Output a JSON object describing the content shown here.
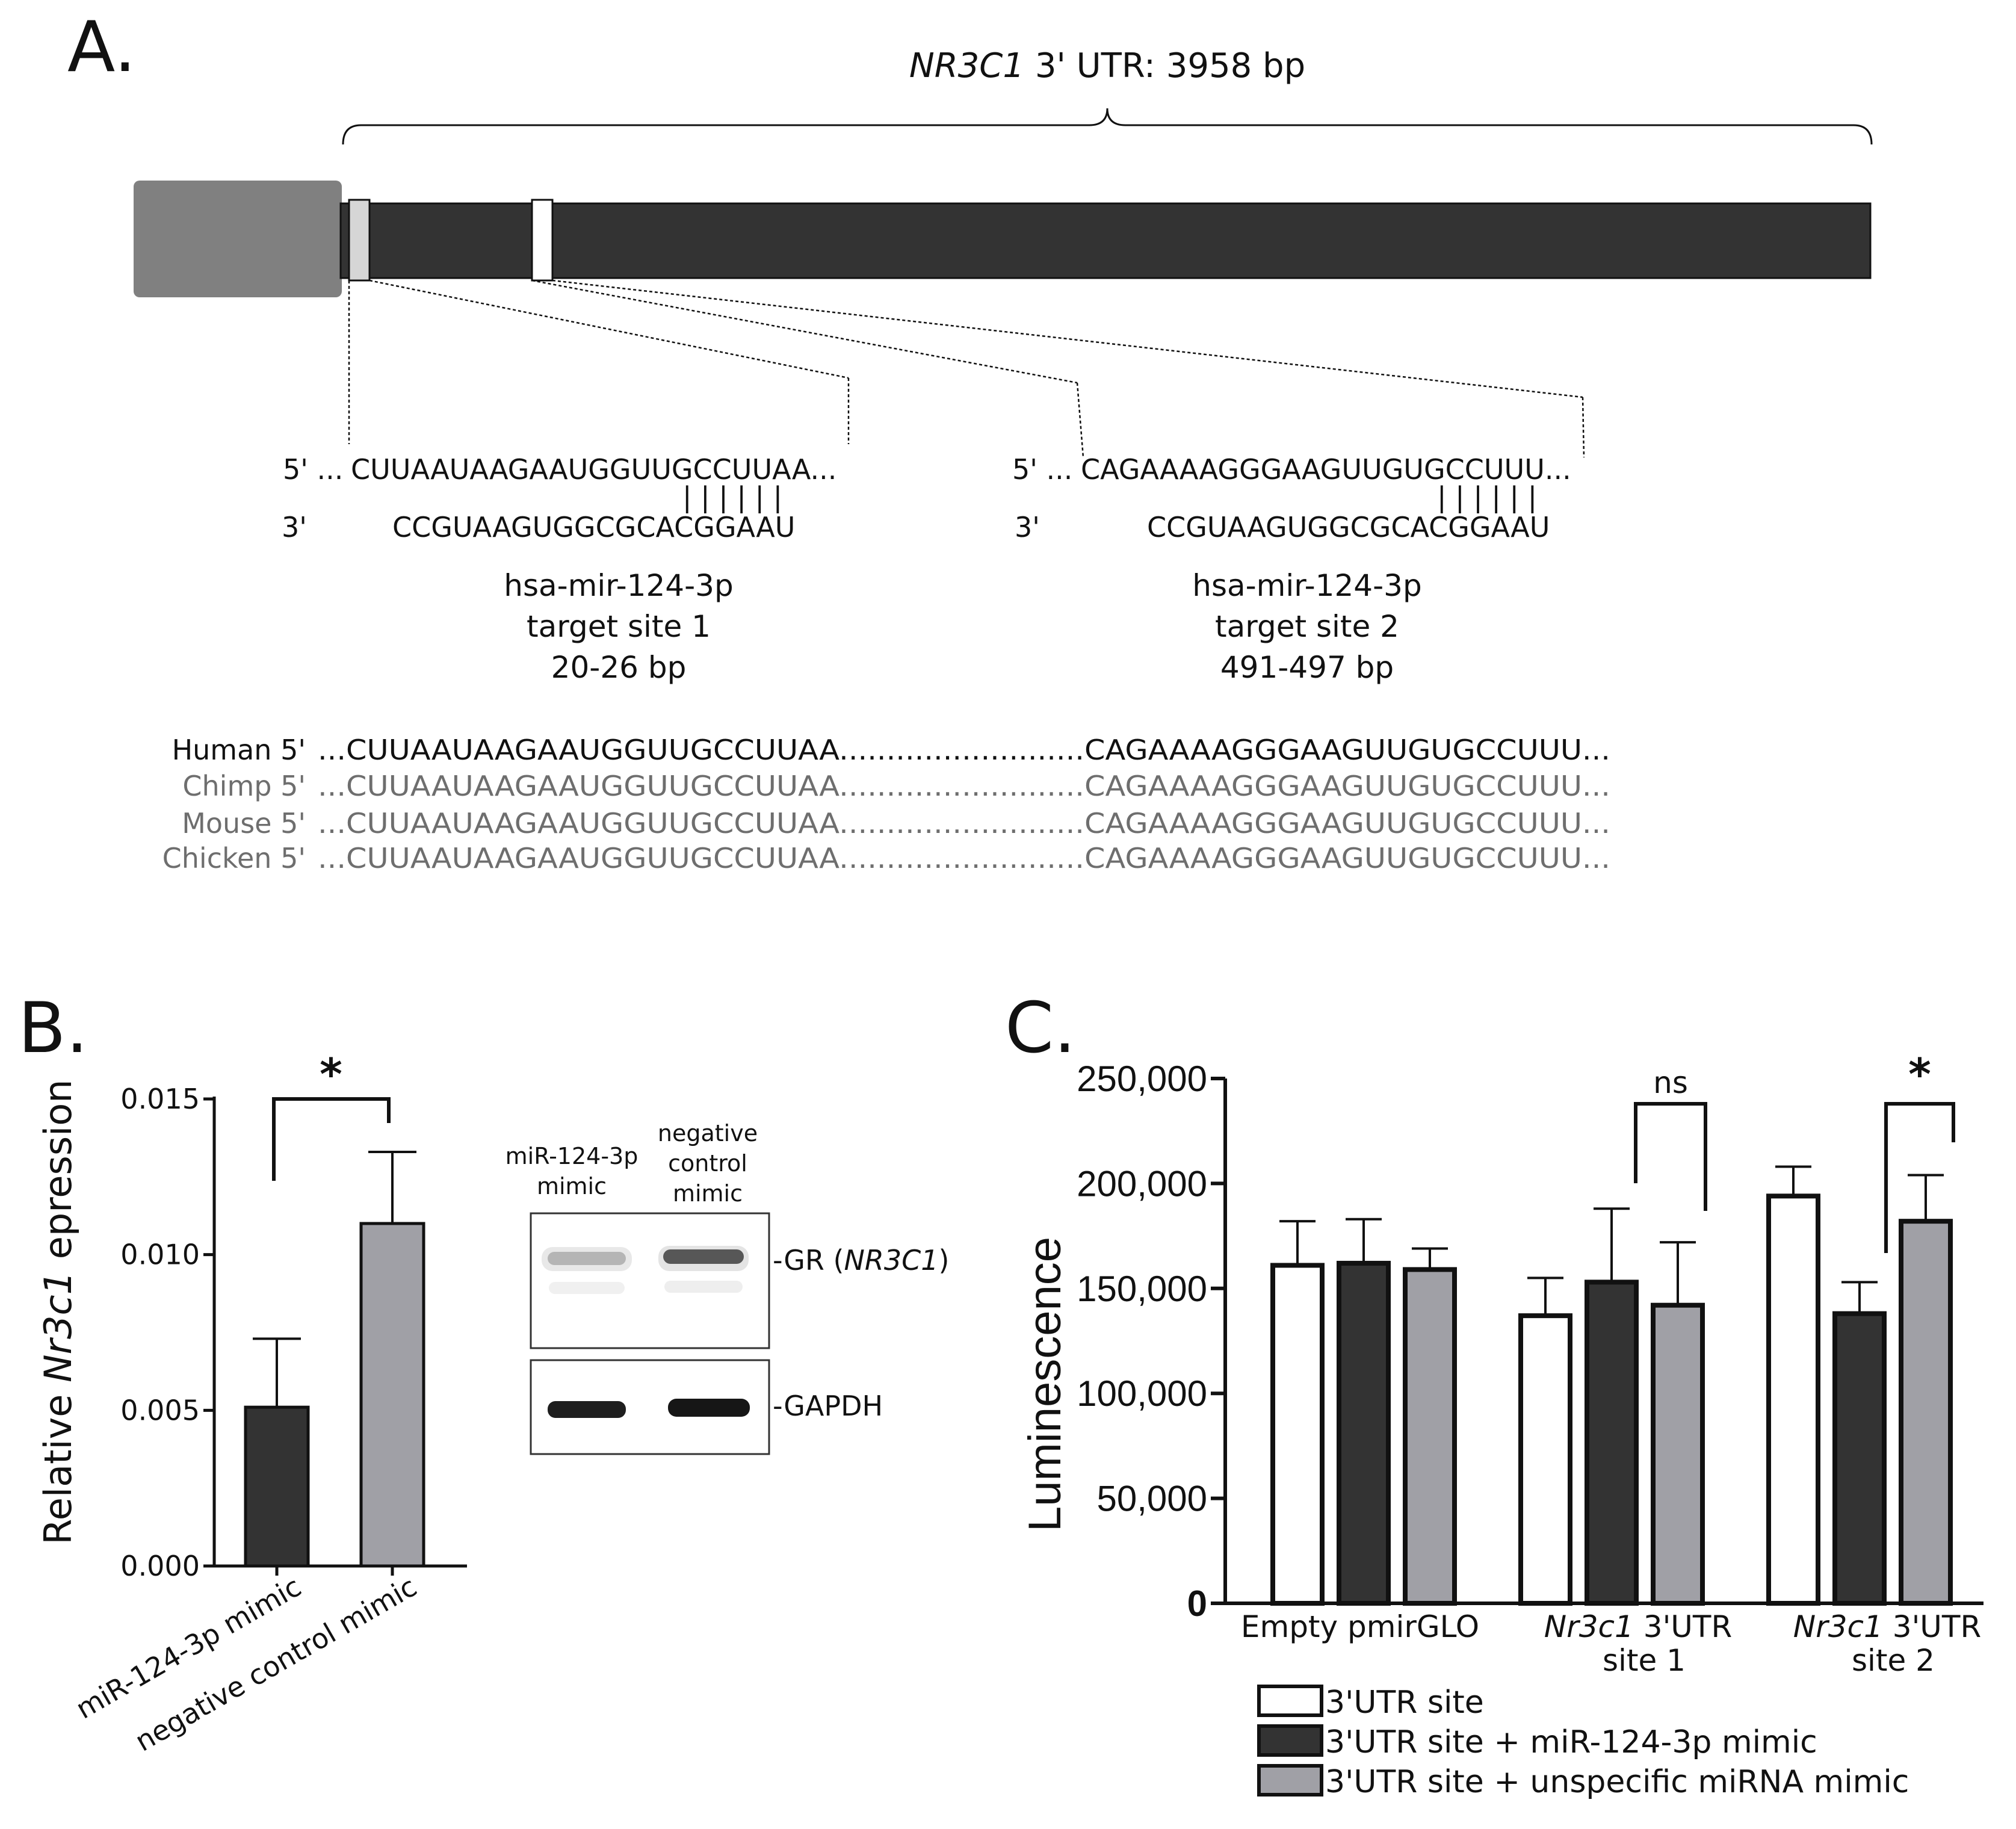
{
  "panel_a": {
    "letter": "A.",
    "utr_gene": "NR3C1",
    "utr_rest": " 3' UTR: 3958 bp",
    "site1": {
      "top_prefix": "5' ...",
      "top_seq": "CUUAAUAAGAAUGGUUGCCUUAA...",
      "bars": "| | | | | |",
      "bottom_prefix": "3'",
      "bottom_seq": "CCGUAAGUGGCGCACGGAAU",
      "name": "hsa-mir-124-3p",
      "site": "target site 1",
      "range": "20-26 bp"
    },
    "site2": {
      "top_prefix": "5' ...",
      "top_seq": "CAGAAAAGGGAAGUUGUGCCUUU...",
      "bars": "| | | | | |",
      "bottom_prefix": "3'",
      "bottom_seq": "CCGUAAGUGGCGCACGGAAU",
      "name": "hsa-mir-124-3p",
      "site": "target site 2",
      "range": "491-497 bp"
    },
    "species": [
      {
        "name": "Human 5'",
        "seq": "...CUUAAUAAGAAUGGUUGCCUUAA..........................CAGAAAAGGGAAGUUGUGCCUUU..."
      },
      {
        "name": "Chimp 5'",
        "seq": "...CUUAAUAAGAAUGGUUGCCUUAA..........................CAGAAAAGGGAAGUUGUGCCUUU..."
      },
      {
        "name": "Mouse 5'",
        "seq": "...CUUAAUAAGAAUGGUUGCCUUAA..........................CAGAAAAGGGAAGUUGUGCCUUU..."
      },
      {
        "name": "Chicken 5'",
        "seq": "...CUUAAUAAGAAUGGUUGCCUUAA..........................CAGAAAAGGGAAGUUGUGCCUUU..."
      }
    ]
  },
  "panel_b": {
    "letter": "B.",
    "ylabel_pre": "Relative ",
    "ylabel_gene": "Nr3c1",
    "ylabel_post": " epression",
    "significance": "*",
    "blot": {
      "lane1_l1": "miR-124-3p",
      "lane1_l2": "mimic",
      "lane2_l1": "negative",
      "lane2_l2": "control",
      "lane2_l3": "mimic",
      "band1_pre": "-GR (",
      "band1_gene": "NR3C1",
      "band1_post": ")",
      "band2": "-GAPDH"
    }
  },
  "panel_c": {
    "letter": "C.",
    "sig_ns": "ns",
    "sig_star": "*",
    "group1_l1": "Empty pmirGLO",
    "group2_gene": "Nr3c1",
    "group2_l1_rest": " 3'UTR",
    "group2_l2": "site 1",
    "group3_gene": "Nr3c1",
    "group3_l1_rest": " 3'UTR",
    "group3_l2": "site 2"
  },
  "chart_data": [
    {
      "type": "bar",
      "categories": [
        "miR-124-3p mimic",
        "negative control mimic"
      ],
      "values": [
        0.0051,
        0.011
      ],
      "errors": [
        0.0022,
        0.0023
      ],
      "ylabel": "Relative Nr3c1 epression",
      "yticks": [
        "0.000",
        "0.005",
        "0.010",
        "0.015"
      ],
      "ylim": [
        0,
        0.015
      ],
      "colors": [
        "#333333",
        "#a0a0a6"
      ]
    },
    {
      "type": "bar",
      "categories": [
        "Empty pmirGLO",
        "Nr3c1 3'UTR site 1",
        "Nr3c1 3'UTR site 2"
      ],
      "series": [
        {
          "name": "3'UTR site",
          "values": [
            161000,
            137000,
            194000
          ],
          "errors": [
            21000,
            18000,
            14000
          ],
          "color": "#ffffff"
        },
        {
          "name": "3'UTR site + miR-124-3p mimic",
          "values": [
            162000,
            153000,
            138000
          ],
          "errors": [
            21000,
            35000,
            15000
          ],
          "color": "#333333"
        },
        {
          "name": "3'UTR site + unspecific miRNA mimic",
          "values": [
            159000,
            142000,
            182000
          ],
          "errors": [
            10000,
            30000,
            22000
          ],
          "color": "#a0a0a6"
        }
      ],
      "ylabel": "Luminescence",
      "yticks": [
        "0",
        "50,000",
        "100,000",
        "150,000",
        "200,000",
        "250,000"
      ],
      "ylim": [
        0,
        250000
      ],
      "legend": "bottom"
    }
  ]
}
